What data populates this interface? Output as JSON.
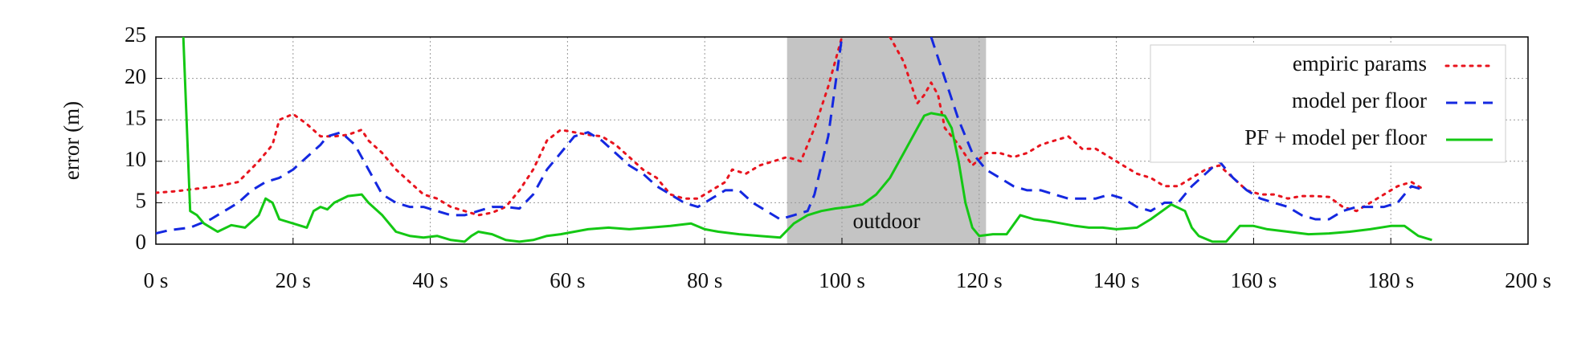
{
  "chart_data": {
    "type": "line",
    "y_label": "error (m)",
    "xlim": [
      0,
      200
    ],
    "ylim": [
      0,
      25
    ],
    "xticks": [
      {
        "value": 0,
        "label": "0 s"
      },
      {
        "value": 20,
        "label": "20 s"
      },
      {
        "value": 40,
        "label": "40 s"
      },
      {
        "value": 60,
        "label": "60 s"
      },
      {
        "value": 80,
        "label": "80 s"
      },
      {
        "value": 100,
        "label": "100 s"
      },
      {
        "value": 120,
        "label": "120 s"
      },
      {
        "value": 140,
        "label": "140 s"
      },
      {
        "value": 160,
        "label": "160 s"
      },
      {
        "value": 180,
        "label": "180 s"
      },
      {
        "value": 200,
        "label": "200 s"
      }
    ],
    "yticks": [
      0,
      5,
      10,
      15,
      20,
      25
    ],
    "grid": true,
    "legend": "top-right",
    "shaded_region": {
      "x": [
        92,
        121
      ],
      "label": "outdoor",
      "color": "#c4c4c4"
    },
    "series": [
      {
        "name": "empiric params",
        "color": "#e8141e",
        "style": "dotted",
        "x": [
          0,
          3,
          6,
          9,
          12,
          15,
          17,
          18,
          20,
          22,
          24,
          26,
          28,
          30,
          31,
          33,
          35,
          37,
          39,
          41,
          43,
          45,
          47,
          49,
          51,
          53,
          55,
          57,
          59,
          61,
          63,
          65,
          67,
          69,
          71,
          73,
          75,
          77,
          79,
          81,
          83,
          84,
          86,
          88,
          90,
          92,
          94,
          96,
          98,
          100,
          103,
          107,
          109,
          111,
          112,
          113,
          114,
          115,
          117,
          119,
          121,
          123,
          125,
          127,
          129,
          131,
          133,
          135,
          137,
          139,
          141,
          143,
          145,
          147,
          149,
          151,
          153,
          155,
          157,
          159,
          161,
          163,
          165,
          167,
          169,
          171,
          173,
          175,
          177,
          179,
          181,
          183,
          185
        ],
        "values": [
          6.2,
          6.4,
          6.7,
          7.0,
          7.5,
          10,
          12,
          15,
          15.7,
          14.5,
          13,
          13,
          13.2,
          13.8,
          12.5,
          11,
          9,
          7.5,
          6,
          5.5,
          4.5,
          4,
          3.5,
          3.8,
          4.5,
          6.5,
          9,
          12.5,
          13.8,
          13.5,
          13.2,
          13,
          12,
          10.5,
          9,
          8,
          6,
          5.5,
          5.5,
          6.5,
          7.5,
          9,
          8.5,
          9.5,
          10,
          10.5,
          10,
          14,
          19,
          25,
          null,
          25,
          22,
          17,
          18,
          19.5,
          18,
          14,
          12,
          9.5,
          11,
          11,
          10.5,
          11,
          12,
          12.5,
          13,
          11.5,
          11.5,
          10.5,
          9.5,
          8.5,
          8,
          7,
          7,
          8,
          9,
          9.5,
          8,
          6.5,
          6,
          6,
          5.5,
          5.8,
          5.8,
          5.7,
          4.5,
          4,
          5,
          6,
          7,
          7.5,
          6.5
        ]
      },
      {
        "name": "model per floor",
        "color": "#1428e0",
        "style": "dashed",
        "x": [
          0,
          2,
          5,
          8,
          10,
          12,
          14,
          16,
          18,
          20,
          22,
          24,
          25,
          27,
          29,
          31,
          33,
          35,
          37,
          39,
          41,
          43,
          45,
          47,
          49,
          51,
          53,
          55,
          57,
          59,
          61,
          63,
          65,
          67,
          69,
          71,
          73,
          75,
          77,
          79,
          81,
          83,
          85,
          87,
          89,
          91,
          93,
          95,
          96,
          98,
          100,
          106,
          113,
          115,
          117,
          119,
          121,
          123,
          125,
          127,
          129,
          131,
          133,
          135,
          137,
          139,
          141,
          143,
          145,
          147,
          149,
          151,
          153,
          155,
          157,
          159,
          161,
          163,
          165,
          167,
          169,
          171,
          173,
          175,
          177,
          179,
          181,
          183,
          185
        ],
        "values": [
          1.3,
          1.7,
          2,
          3,
          4,
          5,
          6.5,
          7.5,
          8,
          9,
          10.5,
          12,
          13,
          13.5,
          12,
          9,
          6,
          5,
          4.5,
          4.5,
          4,
          3.5,
          3.5,
          4,
          4.5,
          4.5,
          4.3,
          6,
          9,
          11,
          13,
          13.5,
          12.5,
          11,
          9.5,
          8.5,
          7,
          6,
          5,
          4.5,
          5.5,
          6.5,
          6.5,
          5,
          4,
          3,
          3.5,
          4,
          6,
          13,
          25,
          null,
          25,
          20,
          15,
          11,
          9,
          8,
          7,
          6.5,
          6.5,
          6,
          5.5,
          5.5,
          5.5,
          6,
          5.5,
          4.5,
          4,
          5,
          5,
          7,
          8.5,
          10,
          8,
          6.5,
          5.5,
          5,
          4.5,
          3.5,
          3,
          3,
          4,
          4.5,
          4.5,
          4.5,
          5,
          7,
          6.5
        ]
      },
      {
        "name": "PF + model per floor",
        "color": "#14c814",
        "style": "solid",
        "x": [
          4,
          5,
          6,
          7,
          9,
          11,
          13,
          15,
          16,
          17,
          18,
          20,
          22,
          23,
          24,
          25,
          26,
          28,
          30,
          31,
          33,
          35,
          37,
          39,
          41,
          43,
          45,
          46,
          47,
          49,
          51,
          53,
          55,
          57,
          59,
          61,
          63,
          66,
          69,
          72,
          75,
          78,
          80,
          82,
          85,
          88,
          91,
          93,
          95,
          97,
          99,
          101,
          103,
          105,
          107,
          109,
          110,
          111,
          112,
          113,
          115,
          116,
          117,
          118,
          119,
          120,
          122,
          124,
          126,
          128,
          130,
          132,
          134,
          136,
          138,
          140,
          143,
          145,
          147,
          148,
          150,
          151,
          152,
          154,
          156,
          158,
          160,
          162,
          165,
          168,
          171,
          174,
          177,
          180,
          182,
          184,
          186
        ],
        "values": [
          25,
          4,
          3.5,
          2.5,
          1.5,
          2.3,
          2,
          3.5,
          5.5,
          5,
          3,
          2.5,
          2,
          4,
          4.5,
          4.2,
          5,
          5.8,
          6,
          5,
          3.5,
          1.5,
          1,
          0.8,
          1,
          0.5,
          0.3,
          1,
          1.5,
          1.2,
          0.5,
          0.3,
          0.5,
          1,
          1.2,
          1.5,
          1.8,
          2,
          1.8,
          2,
          2.2,
          2.5,
          1.8,
          1.5,
          1.2,
          1,
          0.8,
          2.5,
          3.5,
          4,
          4.3,
          4.5,
          4.8,
          6,
          8,
          11,
          12.5,
          14,
          15.5,
          15.8,
          15.5,
          14,
          10,
          5,
          2,
          1,
          1.2,
          1.2,
          3.5,
          3,
          2.8,
          2.5,
          2.2,
          2,
          2,
          1.8,
          2,
          3,
          4.2,
          4.8,
          4,
          2,
          1,
          0.3,
          0.3,
          2.2,
          2.2,
          1.8,
          1.5,
          1.2,
          1.3,
          1.5,
          1.8,
          2.2,
          2.2,
          1,
          0.5
        ]
      }
    ]
  }
}
